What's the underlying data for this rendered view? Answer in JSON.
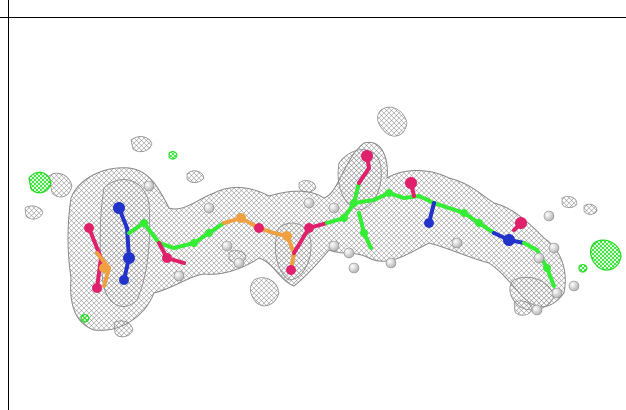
{
  "viewer": {
    "background": "#ffffff",
    "mesh_color": "#9a9a9a",
    "difference_map_color": "#22dd22",
    "carbon_color": "#33ee33",
    "oxygen_color": "#e0206a",
    "nitrogen_color": "#2233cc",
    "phosphorus_color": "#f0a040",
    "hydrogen_color": "#e8e8e8"
  }
}
